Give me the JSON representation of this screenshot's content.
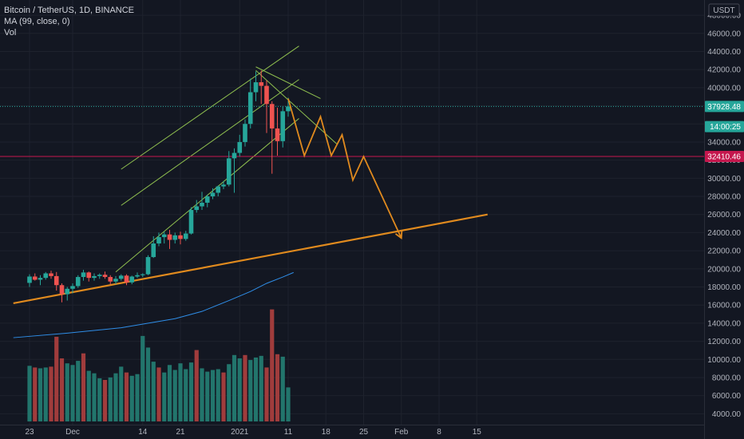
{
  "legend": {
    "symbol": "Bitcoin / TetherUS, 1D, BINANCE",
    "ma": "MA (99, close, 0)",
    "vol": "Vol"
  },
  "currency": "USDT",
  "colors": {
    "background": "#131722",
    "up": "#26a69a",
    "down": "#ef5350",
    "vol_up": "#22756c",
    "vol_down": "#a03c3c",
    "ma": "#2f8ee8",
    "trend": "#e08a1e",
    "channel": "#8fbf4f",
    "resistance": "#c4174d",
    "last_price": "#26a69a"
  },
  "chart_data": {
    "type": "candlestick",
    "title": "Bitcoin / TetherUS, 1D, BINANCE",
    "price_range": [
      2800,
      48800
    ],
    "y_ticks": [
      4000,
      6000,
      8000,
      10000,
      12000,
      14000,
      16000,
      18000,
      20000,
      22000,
      24000,
      26000,
      28000,
      30000,
      32000,
      34000,
      36000,
      38000,
      40000,
      42000,
      44000,
      46000,
      48000
    ],
    "y_tick_labels": [
      "4000.00",
      "6000.00",
      "8000.00",
      "10000.00",
      "12000.00",
      "14000.00",
      "16000.00",
      "18000.00",
      "20000.00",
      "22000.00",
      "24000.00",
      "26000.00",
      "28000.00",
      "30000.00",
      "32000.00",
      "34000.00",
      "36000.00",
      "38000.00",
      "40000.00",
      "42000.00",
      "44000.00",
      "46000.00",
      "48000.00"
    ],
    "x_ticks": [
      {
        "day": 0,
        "label": "23"
      },
      {
        "day": 8,
        "label": "Dec"
      },
      {
        "day": 21,
        "label": "14"
      },
      {
        "day": 28,
        "label": "21"
      },
      {
        "day": 39,
        "label": "2021"
      },
      {
        "day": 48,
        "label": "11"
      },
      {
        "day": 55,
        "label": "18"
      },
      {
        "day": 62,
        "label": "25"
      },
      {
        "day": 69,
        "label": "Feb"
      },
      {
        "day": 76,
        "label": "8"
      },
      {
        "day": 83,
        "label": "15"
      }
    ],
    "candles": [
      [
        18450,
        19400,
        18000,
        19150
      ],
      [
        19150,
        19500,
        18700,
        18800
      ],
      [
        18800,
        19300,
        18200,
        19000
      ],
      [
        19000,
        19650,
        18800,
        19500
      ],
      [
        19500,
        19800,
        18900,
        19200
      ],
      [
        19200,
        19650,
        17600,
        18200
      ],
      [
        18200,
        18400,
        16300,
        17200
      ],
      [
        17200,
        18000,
        16500,
        17800
      ],
      [
        17800,
        18400,
        17300,
        18100
      ],
      [
        18100,
        19300,
        17900,
        19100
      ],
      [
        19100,
        19900,
        18700,
        19600
      ],
      [
        19600,
        19700,
        18600,
        19000
      ],
      [
        19000,
        19500,
        18700,
        19200
      ],
      [
        19200,
        19500,
        18900,
        19350
      ],
      [
        19350,
        19700,
        18900,
        19100
      ],
      [
        19100,
        19300,
        18300,
        18600
      ],
      [
        18600,
        19200,
        18300,
        18900
      ],
      [
        18900,
        19400,
        18700,
        19250
      ],
      [
        19250,
        19400,
        18200,
        18500
      ],
      [
        18500,
        19250,
        18300,
        19150
      ],
      [
        19150,
        19600,
        19000,
        19300
      ],
      [
        19300,
        19500,
        19100,
        19400
      ],
      [
        19400,
        21500,
        19300,
        21300
      ],
      [
        21300,
        23600,
        21200,
        22800
      ],
      [
        22800,
        24000,
        22500,
        23500
      ],
      [
        23500,
        24100,
        22800,
        23800
      ],
      [
        23800,
        24300,
        22200,
        23200
      ],
      [
        23200,
        24000,
        22800,
        23700
      ],
      [
        23700,
        24100,
        22700,
        23300
      ],
      [
        23300,
        24200,
        23100,
        23900
      ],
      [
        23900,
        26800,
        23800,
        26500
      ],
      [
        26500,
        27600,
        26200,
        26900
      ],
      [
        26900,
        28500,
        26500,
        27300
      ],
      [
        27300,
        28200,
        26800,
        28000
      ],
      [
        28000,
        28900,
        27700,
        28400
      ],
      [
        28400,
        29200,
        28000,
        29100
      ],
      [
        29100,
        29700,
        28800,
        29300
      ],
      [
        29300,
        33000,
        29100,
        32200
      ],
      [
        32200,
        33300,
        28400,
        32800
      ],
      [
        32800,
        34800,
        32400,
        34000
      ],
      [
        34000,
        36500,
        33500,
        36000
      ],
      [
        36000,
        41000,
        35500,
        39500
      ],
      [
        39500,
        41800,
        38500,
        40600
      ],
      [
        40600,
        41900,
        38200,
        40200
      ],
      [
        40200,
        40800,
        35000,
        38200
      ],
      [
        38200,
        38500,
        30500,
        35500
      ],
      [
        35500,
        37800,
        32500,
        34100
      ],
      [
        34100,
        37900,
        33400,
        37400
      ],
      [
        37400,
        38900,
        36800,
        37928.48
      ]
    ],
    "volumes": [
      [
        6700,
        1
      ],
      [
        6500,
        0
      ],
      [
        6400,
        1
      ],
      [
        6500,
        1
      ],
      [
        6600,
        0
      ],
      [
        10200,
        0
      ],
      [
        7600,
        0
      ],
      [
        7000,
        1
      ],
      [
        6800,
        1
      ],
      [
        7300,
        1
      ],
      [
        8200,
        0
      ],
      [
        6100,
        1
      ],
      [
        5800,
        1
      ],
      [
        5200,
        1
      ],
      [
        5000,
        0
      ],
      [
        5300,
        1
      ],
      [
        5800,
        1
      ],
      [
        6600,
        1
      ],
      [
        5900,
        0
      ],
      [
        5500,
        1
      ],
      [
        5700,
        1
      ],
      [
        10300,
        1
      ],
      [
        8900,
        1
      ],
      [
        7200,
        1
      ],
      [
        6500,
        0
      ],
      [
        5900,
        1
      ],
      [
        6800,
        1
      ],
      [
        6200,
        1
      ],
      [
        7000,
        1
      ],
      [
        6300,
        1
      ],
      [
        7100,
        1
      ],
      [
        8600,
        0
      ],
      [
        6400,
        1
      ],
      [
        6000,
        1
      ],
      [
        6200,
        1
      ],
      [
        6300,
        1
      ],
      [
        5900,
        0
      ],
      [
        6900,
        1
      ],
      [
        8000,
        1
      ],
      [
        7600,
        1
      ],
      [
        8000,
        0
      ],
      [
        7400,
        1
      ],
      [
        7700,
        1
      ],
      [
        7900,
        1
      ],
      [
        6500,
        0
      ],
      [
        13500,
        0
      ],
      [
        8100,
        0
      ],
      [
        7800,
        1
      ],
      [
        4100,
        1
      ]
    ],
    "ma99": [
      [
        -3,
        12400
      ],
      [
        7,
        12900
      ],
      [
        17,
        13500
      ],
      [
        27,
        14500
      ],
      [
        32,
        15300
      ],
      [
        37,
        16500
      ],
      [
        41,
        17500
      ],
      [
        44,
        18400
      ],
      [
        47,
        19100
      ],
      [
        49,
        19600
      ]
    ],
    "drawings": {
      "trend_line": [
        [
          -3,
          16200
        ],
        [
          85,
          26000
        ]
      ],
      "channel_upper": [
        [
          17,
          31000
        ],
        [
          50,
          44600
        ]
      ],
      "channel_middle": [
        [
          17,
          27000
        ],
        [
          50,
          40900
        ]
      ],
      "channel_lower": [
        [
          16,
          19650
        ],
        [
          50,
          36600
        ]
      ],
      "short_line": [
        [
          42,
          42300
        ],
        [
          54,
          38800
        ]
      ],
      "descending_line": [
        [
          42,
          41900
        ],
        [
          57,
          33800
        ]
      ],
      "projection": [
        [
          48,
          38800
        ],
        [
          51,
          32500
        ],
        [
          54,
          36800
        ],
        [
          56,
          32500
        ],
        [
          58,
          34800
        ],
        [
          60,
          29800
        ],
        [
          62,
          32400
        ],
        [
          69,
          23400
        ]
      ],
      "resistance_level": 32410.46,
      "last_price": 37928.48
    },
    "price_tags": [
      {
        "value": 37928.48,
        "label": "37928.48",
        "kind": "last"
      },
      {
        "value": 35700,
        "label": "14:00:25",
        "kind": "countdown"
      },
      {
        "value": 32410.46,
        "label": "32410.46",
        "kind": "level"
      }
    ]
  }
}
